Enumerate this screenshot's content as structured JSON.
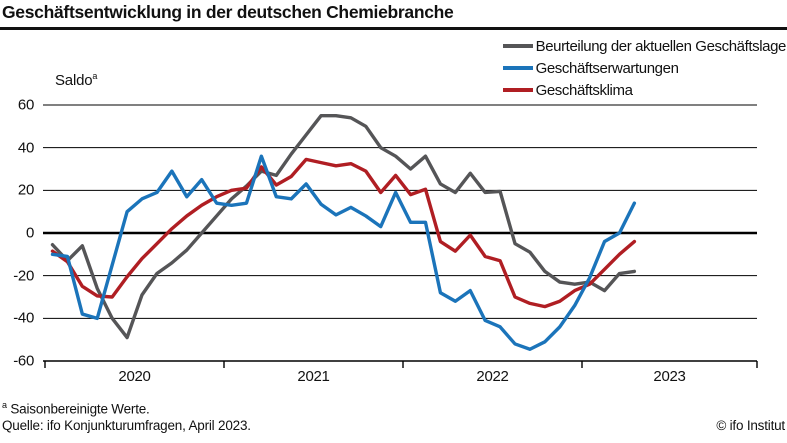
{
  "title": "Geschäftsentwicklung in der deutschen Chemiebranche",
  "y_axis_title": {
    "text": "Saldo",
    "sup": "a"
  },
  "legend": [
    {
      "label": "Beurteilung der aktuellen Geschäftslage",
      "color": "#555557"
    },
    {
      "label": "Geschäftserwartungen",
      "color": "#1b74ba"
    },
    {
      "label": "Geschäftsklima",
      "color": "#b01e23"
    }
  ],
  "footer": {
    "footnote_sup": "a",
    "footnote": "Saisonbereinigte Werte.",
    "source": "Quelle: ifo Konjunkturumfragen, April 2023.",
    "copyright": "© ifo Institut"
  },
  "chart_data": {
    "type": "line",
    "title": "Geschäftsentwicklung in der deutschen Chemiebranche",
    "ylabel": "Saldo (saisonbereinigt)",
    "ylim": [
      -60,
      60
    ],
    "y_ticks": [
      "60",
      "40",
      "20",
      "0",
      "-20",
      "-40",
      "-60"
    ],
    "y_tick_values": [
      60,
      40,
      20,
      0,
      -20,
      -40,
      -60
    ],
    "x_tick_years": [
      "2020",
      "2021",
      "2022",
      "2023"
    ],
    "grid": "horizontal",
    "legend_position": "top-right",
    "x_monthly_start": "2020-01",
    "x_monthly_end": "2023-04",
    "series": [
      {
        "name": "Beurteilung der aktuellen Geschäftslage",
        "color": "#555557",
        "values": [
          -5.5,
          -13,
          -6,
          -26,
          -40,
          -49,
          -29,
          -19,
          -14,
          -8,
          0,
          8,
          16,
          22,
          29,
          27,
          37,
          46,
          55,
          55,
          54,
          50,
          40,
          36,
          30,
          36,
          23,
          19,
          28,
          19,
          19.5,
          -5,
          -9,
          -18,
          -23,
          -24,
          -23,
          -27,
          -19,
          -18
        ]
      },
      {
        "name": "Geschäftserwartungen",
        "color": "#1b74ba",
        "values": [
          -10,
          -11,
          -38,
          -40,
          -15,
          10,
          16,
          19,
          29,
          17,
          25,
          14,
          13,
          14,
          36,
          17,
          16,
          23,
          13.5,
          8.5,
          12,
          8,
          3,
          19,
          5,
          5,
          -28,
          -32,
          -27,
          -41,
          -44,
          -52,
          -54.5,
          -51,
          -44,
          -34,
          -21,
          -4,
          0,
          14
        ]
      },
      {
        "name": "Geschäftsklima",
        "color": "#b01e23",
        "values": [
          -8.5,
          -13.5,
          -25,
          -29.5,
          -30,
          -20.5,
          -12,
          -5,
          2,
          8,
          13,
          17,
          20,
          21,
          31,
          22.5,
          26.5,
          34.5,
          33,
          31.5,
          32.5,
          29,
          19,
          27,
          18,
          20.5,
          -4,
          -8.5,
          -1,
          -11,
          -13,
          -30,
          -33,
          -34.5,
          -32,
          -27,
          -24,
          -17,
          -10,
          -4
        ]
      }
    ]
  }
}
